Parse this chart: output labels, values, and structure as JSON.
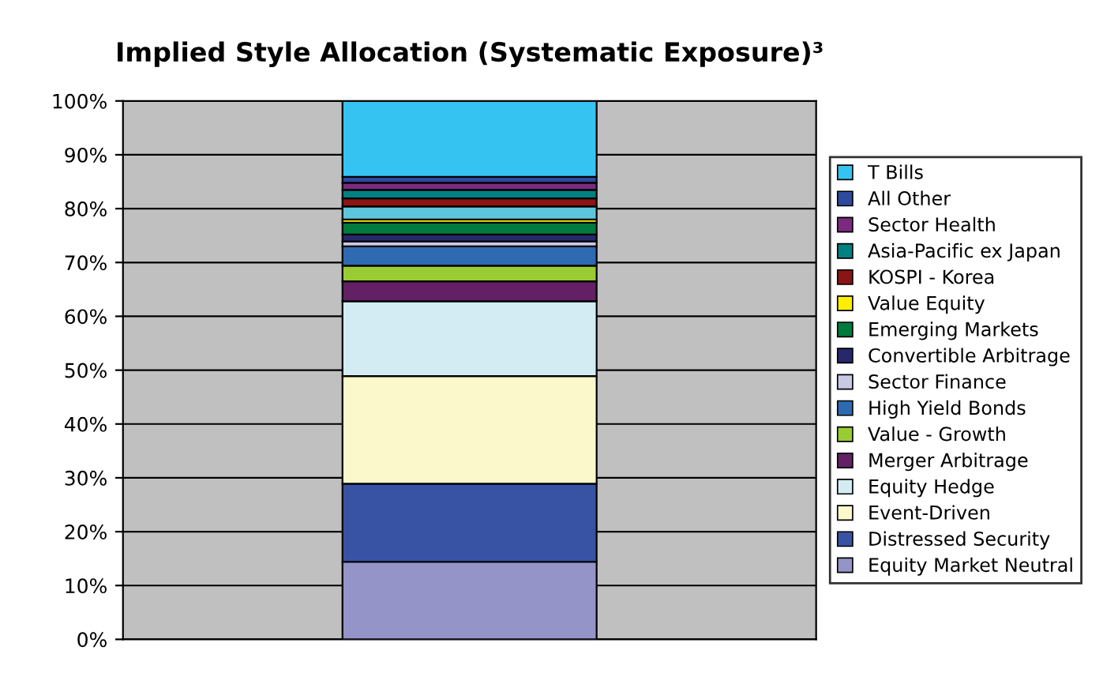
{
  "chart_data": {
    "type": "bar",
    "stacked": true,
    "title": "Implied Style Allocation (Systematic Exposure)³",
    "categories": [
      null
    ],
    "series": [
      {
        "name": "Equity Market Neutral",
        "color": "#9494c8",
        "values": [
          14.4
        ]
      },
      {
        "name": "Distressed Security",
        "color": "#3953a4",
        "values": [
          14.5
        ]
      },
      {
        "name": "Event-Driven",
        "color": "#fbf8cc",
        "values": [
          20.0
        ]
      },
      {
        "name": "Equity Hedge",
        "color": "#d3ecf4",
        "values": [
          13.9
        ]
      },
      {
        "name": "Merger Arbitrage",
        "color": "#632064",
        "values": [
          3.7
        ]
      },
      {
        "name": "Value - Growth",
        "color": "#99cc33",
        "values": [
          2.9
        ]
      },
      {
        "name": "High Yield Bonds",
        "color": "#2e6ab1",
        "values": [
          3.6
        ]
      },
      {
        "name": "Sector Finance",
        "color": "#c9c9e6",
        "values": [
          0.9
        ]
      },
      {
        "name": "Convertible Arbitrage",
        "color": "#27286b",
        "values": [
          1.3
        ]
      },
      {
        "name": "Emerging Markets",
        "color": "#007a3d",
        "values": [
          2.2
        ]
      },
      {
        "name": "Value Equity",
        "color": "#ffee00",
        "values": [
          0.6
        ]
      },
      {
        "color": "#5ec6dc",
        "values": [
          2.4
        ]
      },
      {
        "name": "KOSPI - Korea",
        "color": "#8b1414",
        "values": [
          1.5
        ]
      },
      {
        "name": "Asia-Pacific ex Japan",
        "color": "#008080",
        "values": [
          1.6
        ]
      },
      {
        "name": "Sector Health",
        "color": "#7b2a7f",
        "values": [
          1.3
        ]
      },
      {
        "name": "All Other",
        "color": "#2e4a9e",
        "values": [
          1.1
        ]
      },
      {
        "name": "T Bills",
        "color": "#35c4f2",
        "values": [
          14.1
        ]
      }
    ],
    "ylim": [
      0,
      100
    ],
    "yticks": [
      {
        "value": 0,
        "label": "0%"
      },
      {
        "value": 10,
        "label": "10%"
      },
      {
        "value": 20,
        "label": "20%"
      },
      {
        "value": 30,
        "label": "30%"
      },
      {
        "value": 40,
        "label": "40%"
      },
      {
        "value": 50,
        "label": "50%"
      },
      {
        "value": 60,
        "label": "60%"
      },
      {
        "value": 70,
        "label": "70%"
      },
      {
        "value": 80,
        "label": "80%"
      },
      {
        "value": 90,
        "label": "90%"
      },
      {
        "value": 100,
        "label": "100%"
      }
    ],
    "grid": "y",
    "legend": "right"
  }
}
